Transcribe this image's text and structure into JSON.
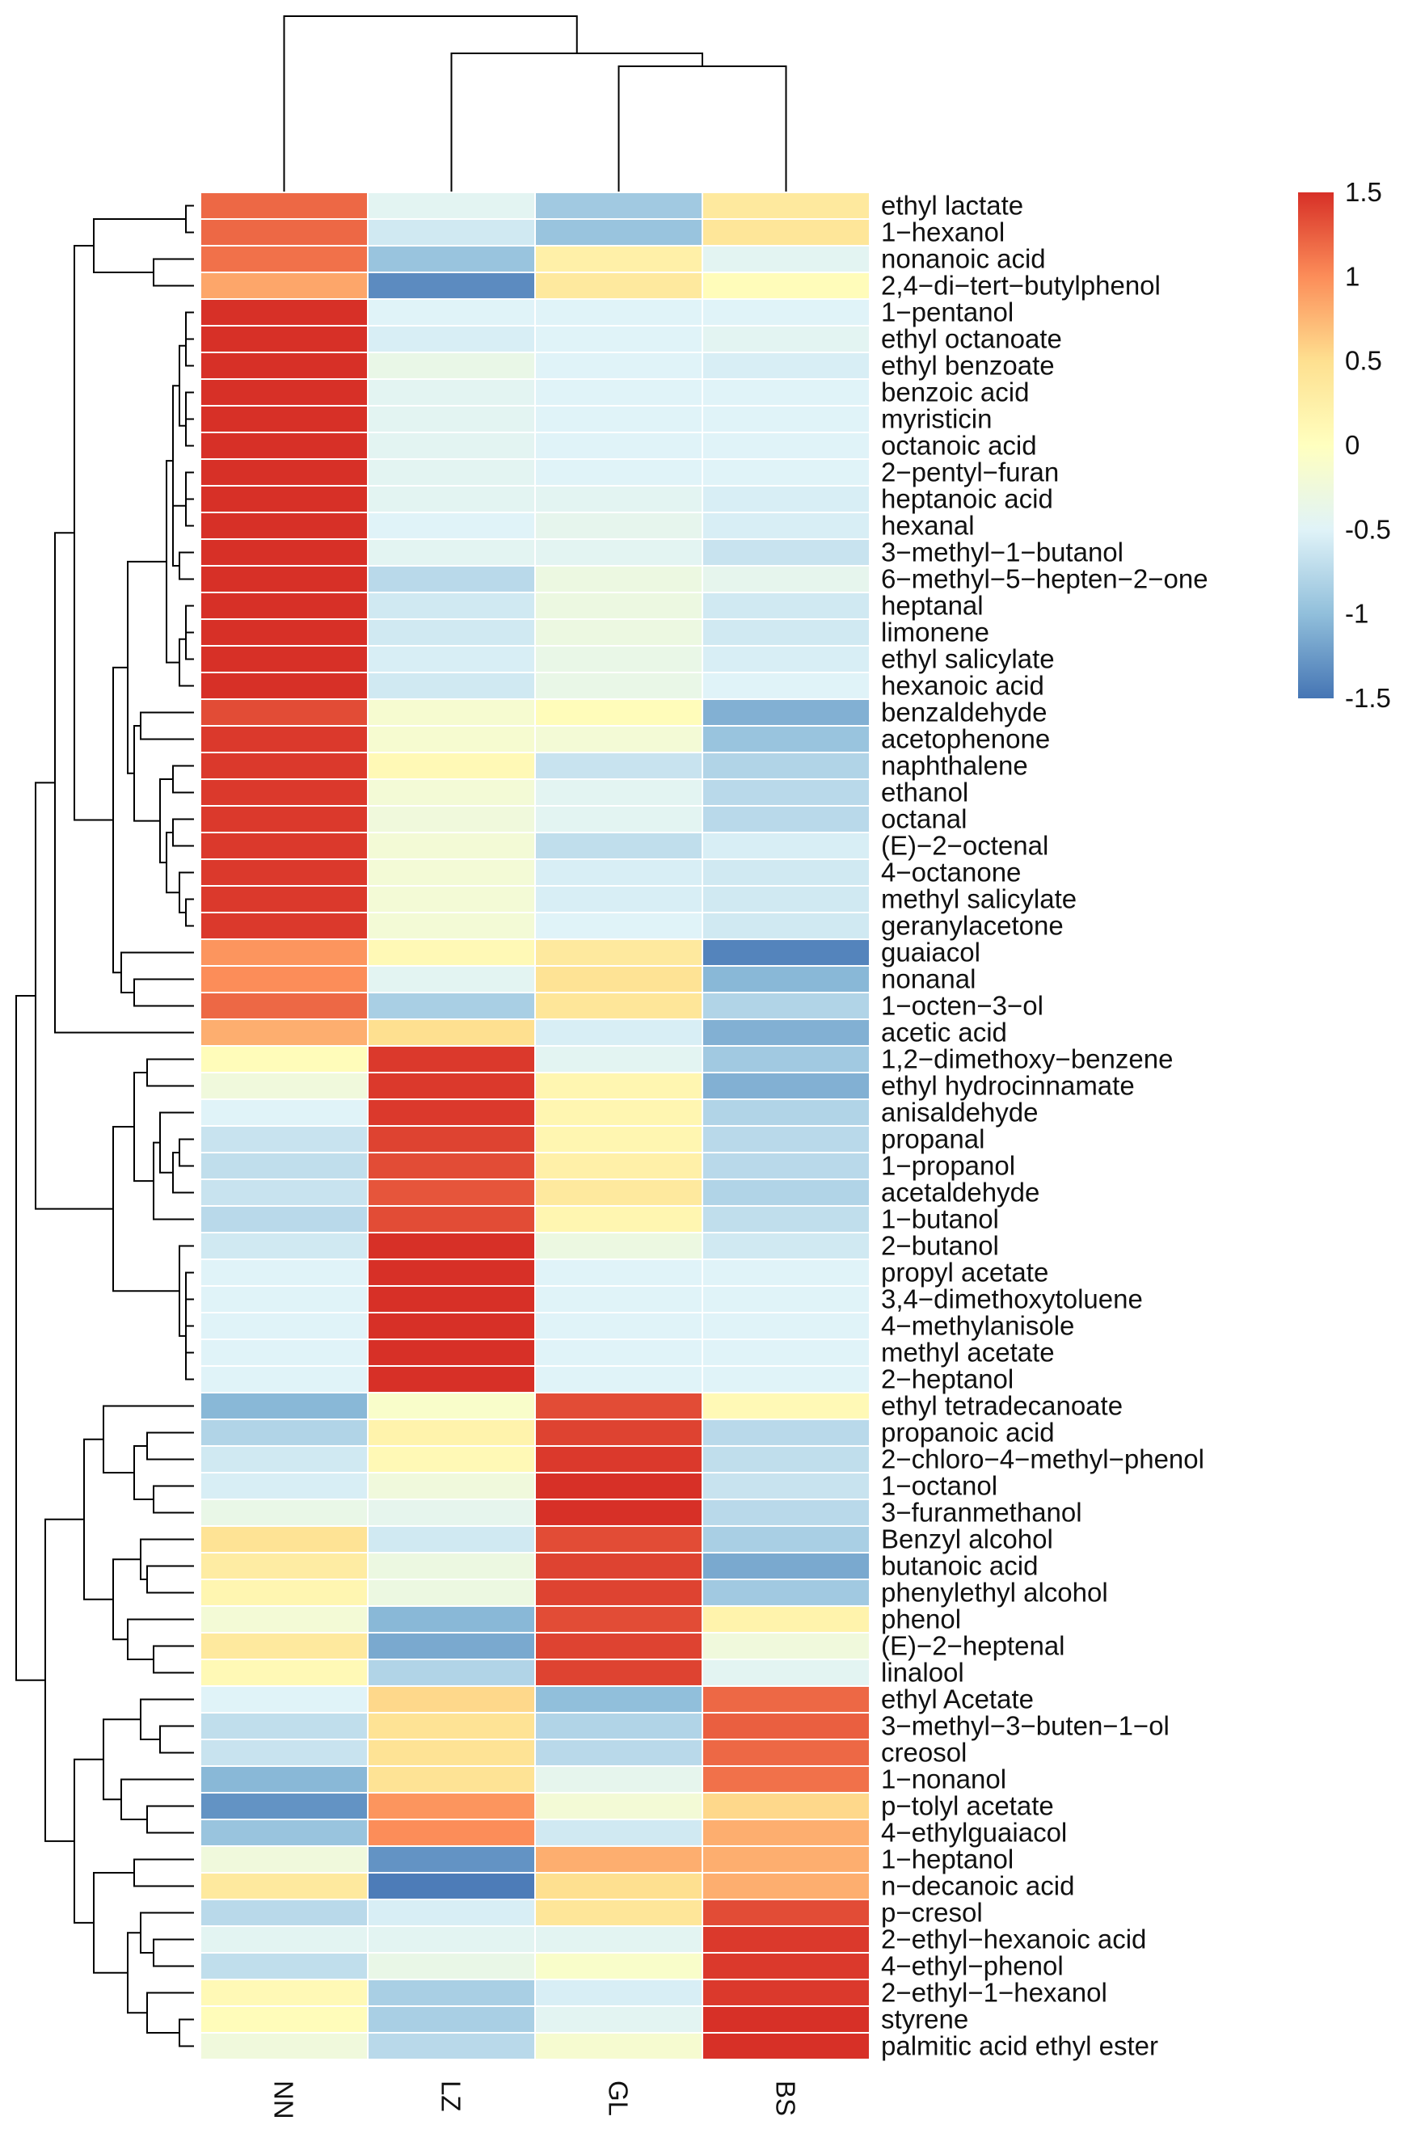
{
  "chart_data": {
    "type": "heatmap",
    "title": "",
    "columns": [
      "NN",
      "LZ",
      "GL",
      "BS"
    ],
    "rows": [
      {
        "label": "ethyl lactate",
        "values": [
          1.2,
          -0.45,
          -0.9,
          0.35
        ]
      },
      {
        "label": "1−hexanol",
        "values": [
          1.2,
          -0.6,
          -0.95,
          0.4
        ]
      },
      {
        "label": "nonanoic acid",
        "values": [
          1.15,
          -0.95,
          0.25,
          -0.45
        ]
      },
      {
        "label": "2,4−di−tert−butylphenol",
        "values": [
          0.85,
          -1.35,
          0.35,
          0.05
        ]
      },
      {
        "label": "1−pentanol",
        "values": [
          1.5,
          -0.5,
          -0.5,
          -0.5
        ]
      },
      {
        "label": "ethyl octanoate",
        "values": [
          1.5,
          -0.55,
          -0.5,
          -0.45
        ]
      },
      {
        "label": "ethyl benzoate",
        "values": [
          1.5,
          -0.35,
          -0.5,
          -0.55
        ]
      },
      {
        "label": "benzoic acid",
        "values": [
          1.5,
          -0.45,
          -0.5,
          -0.5
        ]
      },
      {
        "label": "myristicin",
        "values": [
          1.5,
          -0.45,
          -0.5,
          -0.5
        ]
      },
      {
        "label": "octanoic acid",
        "values": [
          1.5,
          -0.45,
          -0.5,
          -0.5
        ]
      },
      {
        "label": "2−pentyl−furan",
        "values": [
          1.5,
          -0.45,
          -0.5,
          -0.5
        ]
      },
      {
        "label": "heptanoic acid",
        "values": [
          1.5,
          -0.45,
          -0.45,
          -0.55
        ]
      },
      {
        "label": "hexanal",
        "values": [
          1.5,
          -0.5,
          -0.4,
          -0.55
        ]
      },
      {
        "label": "3−methyl−1−butanol",
        "values": [
          1.5,
          -0.45,
          -0.45,
          -0.65
        ]
      },
      {
        "label": "6−methyl−5−hepten−2−one",
        "values": [
          1.5,
          -0.75,
          -0.3,
          -0.4
        ]
      },
      {
        "label": "heptanal",
        "values": [
          1.5,
          -0.6,
          -0.3,
          -0.6
        ]
      },
      {
        "label": "limonene",
        "values": [
          1.5,
          -0.6,
          -0.3,
          -0.6
        ]
      },
      {
        "label": "ethyl salicylate",
        "values": [
          1.5,
          -0.55,
          -0.35,
          -0.55
        ]
      },
      {
        "label": "hexanoic acid",
        "values": [
          1.5,
          -0.6,
          -0.35,
          -0.5
        ]
      },
      {
        "label": "benzaldehyde",
        "values": [
          1.35,
          -0.15,
          0.05,
          -1.1
        ]
      },
      {
        "label": "acetophenone",
        "values": [
          1.45,
          -0.15,
          -0.2,
          -0.95
        ]
      },
      {
        "label": "naphthalene",
        "values": [
          1.45,
          0.1,
          -0.65,
          -0.8
        ]
      },
      {
        "label": "ethanol",
        "values": [
          1.45,
          -0.2,
          -0.45,
          -0.75
        ]
      },
      {
        "label": "octanal",
        "values": [
          1.45,
          -0.25,
          -0.45,
          -0.75
        ]
      },
      {
        "label": "(E)−2−octenal",
        "values": [
          1.45,
          -0.2,
          -0.7,
          -0.55
        ]
      },
      {
        "label": "4−octanone",
        "values": [
          1.45,
          -0.2,
          -0.55,
          -0.6
        ]
      },
      {
        "label": "methyl salicylate",
        "values": [
          1.45,
          -0.2,
          -0.55,
          -0.6
        ]
      },
      {
        "label": "geranylacetone",
        "values": [
          1.45,
          -0.2,
          -0.5,
          -0.6
        ]
      },
      {
        "label": "guaiacol",
        "values": [
          0.95,
          0.1,
          0.35,
          -1.4
        ]
      },
      {
        "label": "nonanal",
        "values": [
          1.0,
          -0.45,
          0.45,
          -1.05
        ]
      },
      {
        "label": "1−octen−3−ol",
        "values": [
          1.2,
          -0.85,
          0.4,
          -0.8
        ]
      },
      {
        "label": "acetic acid",
        "values": [
          0.8,
          0.5,
          -0.55,
          -1.1
        ]
      },
      {
        "label": "1,2−dimethoxy−benzene",
        "values": [
          0.05,
          1.45,
          -0.45,
          -0.9
        ]
      },
      {
        "label": "ethyl hydrocinnamate",
        "values": [
          -0.25,
          1.45,
          0.15,
          -1.1
        ]
      },
      {
        "label": "anisaldehyde",
        "values": [
          -0.5,
          1.45,
          0.15,
          -0.8
        ]
      },
      {
        "label": "propanal",
        "values": [
          -0.65,
          1.4,
          0.15,
          -0.75
        ]
      },
      {
        "label": "1−propanol",
        "values": [
          -0.7,
          1.35,
          0.25,
          -0.75
        ]
      },
      {
        "label": "acetaldehyde",
        "values": [
          -0.65,
          1.3,
          0.35,
          -0.8
        ]
      },
      {
        "label": "1−butanol",
        "values": [
          -0.75,
          1.35,
          0.15,
          -0.7
        ]
      },
      {
        "label": "2−butanol",
        "values": [
          -0.6,
          1.5,
          -0.3,
          -0.6
        ]
      },
      {
        "label": "propyl acetate",
        "values": [
          -0.5,
          1.5,
          -0.5,
          -0.5
        ]
      },
      {
        "label": "3,4−dimethoxytoluene",
        "values": [
          -0.5,
          1.5,
          -0.5,
          -0.5
        ]
      },
      {
        "label": "4−methylanisole",
        "values": [
          -0.5,
          1.5,
          -0.5,
          -0.5
        ]
      },
      {
        "label": "methyl acetate",
        "values": [
          -0.5,
          1.5,
          -0.5,
          -0.5
        ]
      },
      {
        "label": "2−heptanol",
        "values": [
          -0.5,
          1.5,
          -0.5,
          -0.5
        ]
      },
      {
        "label": "ethyl tetradecanoate",
        "values": [
          -1.05,
          -0.1,
          1.35,
          0.1
        ]
      },
      {
        "label": "propanoic acid",
        "values": [
          -0.8,
          0.2,
          1.4,
          -0.75
        ]
      },
      {
        "label": "2−chloro−4−methyl−phenol",
        "values": [
          -0.6,
          0.1,
          1.45,
          -0.7
        ]
      },
      {
        "label": "1−octanol",
        "values": [
          -0.55,
          -0.25,
          1.5,
          -0.65
        ]
      },
      {
        "label": "3−furanmethanol",
        "values": [
          -0.35,
          -0.4,
          1.5,
          -0.75
        ]
      },
      {
        "label": "Benzyl alcohol",
        "values": [
          0.45,
          -0.6,
          1.35,
          -0.85
        ]
      },
      {
        "label": "butanoic acid",
        "values": [
          0.3,
          -0.3,
          1.4,
          -1.15
        ]
      },
      {
        "label": "phenylethyl alcohol",
        "values": [
          0.15,
          -0.3,
          1.4,
          -0.9
        ]
      },
      {
        "label": "phenol",
        "values": [
          -0.2,
          -1.05,
          1.35,
          0.2
        ]
      },
      {
        "label": "(E)−2−heptenal",
        "values": [
          0.35,
          -1.15,
          1.4,
          -0.25
        ]
      },
      {
        "label": "linalool",
        "values": [
          0.1,
          -0.8,
          1.4,
          -0.45
        ]
      },
      {
        "label": "ethyl Acetate",
        "values": [
          -0.5,
          0.55,
          -1.0,
          1.2
        ]
      },
      {
        "label": "3−methyl−3−buten−1−ol",
        "values": [
          -0.7,
          0.45,
          -0.8,
          1.25
        ]
      },
      {
        "label": "creosol",
        "values": [
          -0.65,
          0.45,
          -0.75,
          1.2
        ]
      },
      {
        "label": "1−nonanol",
        "values": [
          -1.05,
          0.45,
          -0.4,
          1.15
        ]
      },
      {
        "label": "p−tolyl acetate",
        "values": [
          -1.3,
          0.95,
          -0.2,
          0.55
        ]
      },
      {
        "label": "4−ethylguaiacol",
        "values": [
          -0.95,
          1.0,
          -0.6,
          0.8
        ]
      },
      {
        "label": "1−heptanol",
        "values": [
          -0.25,
          -1.3,
          0.8,
          0.8
        ]
      },
      {
        "label": "n−decanoic acid",
        "values": [
          0.35,
          -1.45,
          0.5,
          0.8
        ]
      },
      {
        "label": "p−cresol",
        "values": [
          -0.75,
          -0.55,
          0.4,
          1.35
        ]
      },
      {
        "label": "2−ethyl−hexanoic acid",
        "values": [
          -0.45,
          -0.45,
          -0.45,
          1.45
        ]
      },
      {
        "label": "4−ethyl−phenol",
        "values": [
          -0.7,
          -0.35,
          -0.1,
          1.45
        ]
      },
      {
        "label": "2−ethyl−1−hexanol",
        "values": [
          0.1,
          -0.85,
          -0.55,
          1.45
        ]
      },
      {
        "label": "styrene",
        "values": [
          0.05,
          -0.85,
          -0.45,
          1.5
        ]
      },
      {
        "label": "palmitic acid ethyl ester",
        "values": [
          -0.25,
          -0.75,
          -0.15,
          1.5
        ]
      }
    ],
    "color_scale": {
      "min": -1.5,
      "max": 1.5,
      "stops": [
        "#4575b4",
        "#91bfdb",
        "#e0f3f8",
        "#ffffbf",
        "#fee090",
        "#fc8d59",
        "#d73027"
      ]
    },
    "legend": {
      "ticks": [
        "1.5",
        "1",
        "0.5",
        "0",
        "-0.5",
        "-1",
        "-1.5"
      ],
      "position": "top-right"
    },
    "row_dendrogram_order": "clustered",
    "col_dendrogram": "NN | (LZ | (GL | BS))"
  }
}
